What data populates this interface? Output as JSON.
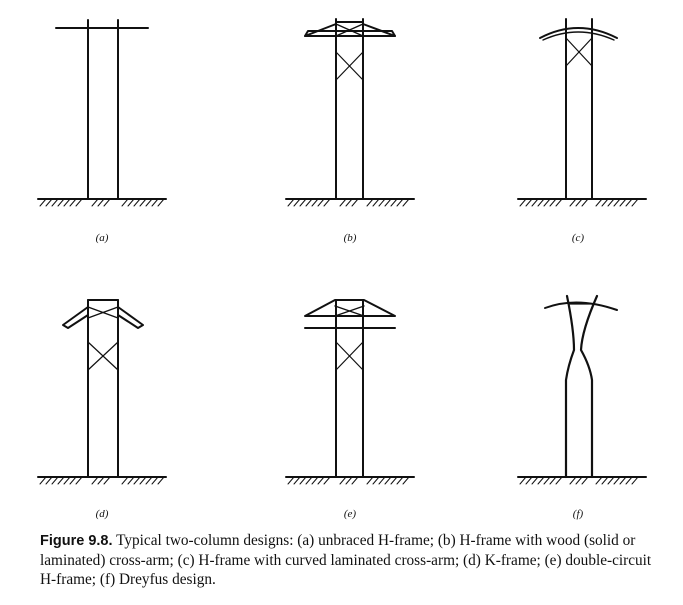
{
  "figure": {
    "panels": [
      {
        "id": "a",
        "label": "(a)",
        "design": "unbraced-h-frame"
      },
      {
        "id": "b",
        "label": "(b)",
        "design": "h-frame-wood-cross-arm"
      },
      {
        "id": "c",
        "label": "(c)",
        "design": "h-frame-curved-cross-arm"
      },
      {
        "id": "d",
        "label": "(d)",
        "design": "k-frame"
      },
      {
        "id": "e",
        "label": "(e)",
        "design": "double-circuit-h-frame"
      },
      {
        "id": "f",
        "label": "(f)",
        "design": "dreyfus-design"
      }
    ],
    "caption": {
      "number": "Figure 9.8.",
      "text": "Typical two-column designs: (a) unbraced H-frame; (b) H-frame with wood (solid or laminated) cross-arm; (c) H-frame with curved laminated cross-arm; (d) K-frame; (e) double-circuit H-frame; (f) Dreyfus design."
    }
  },
  "colors": {
    "line": "#111111",
    "background": "#ffffff"
  }
}
